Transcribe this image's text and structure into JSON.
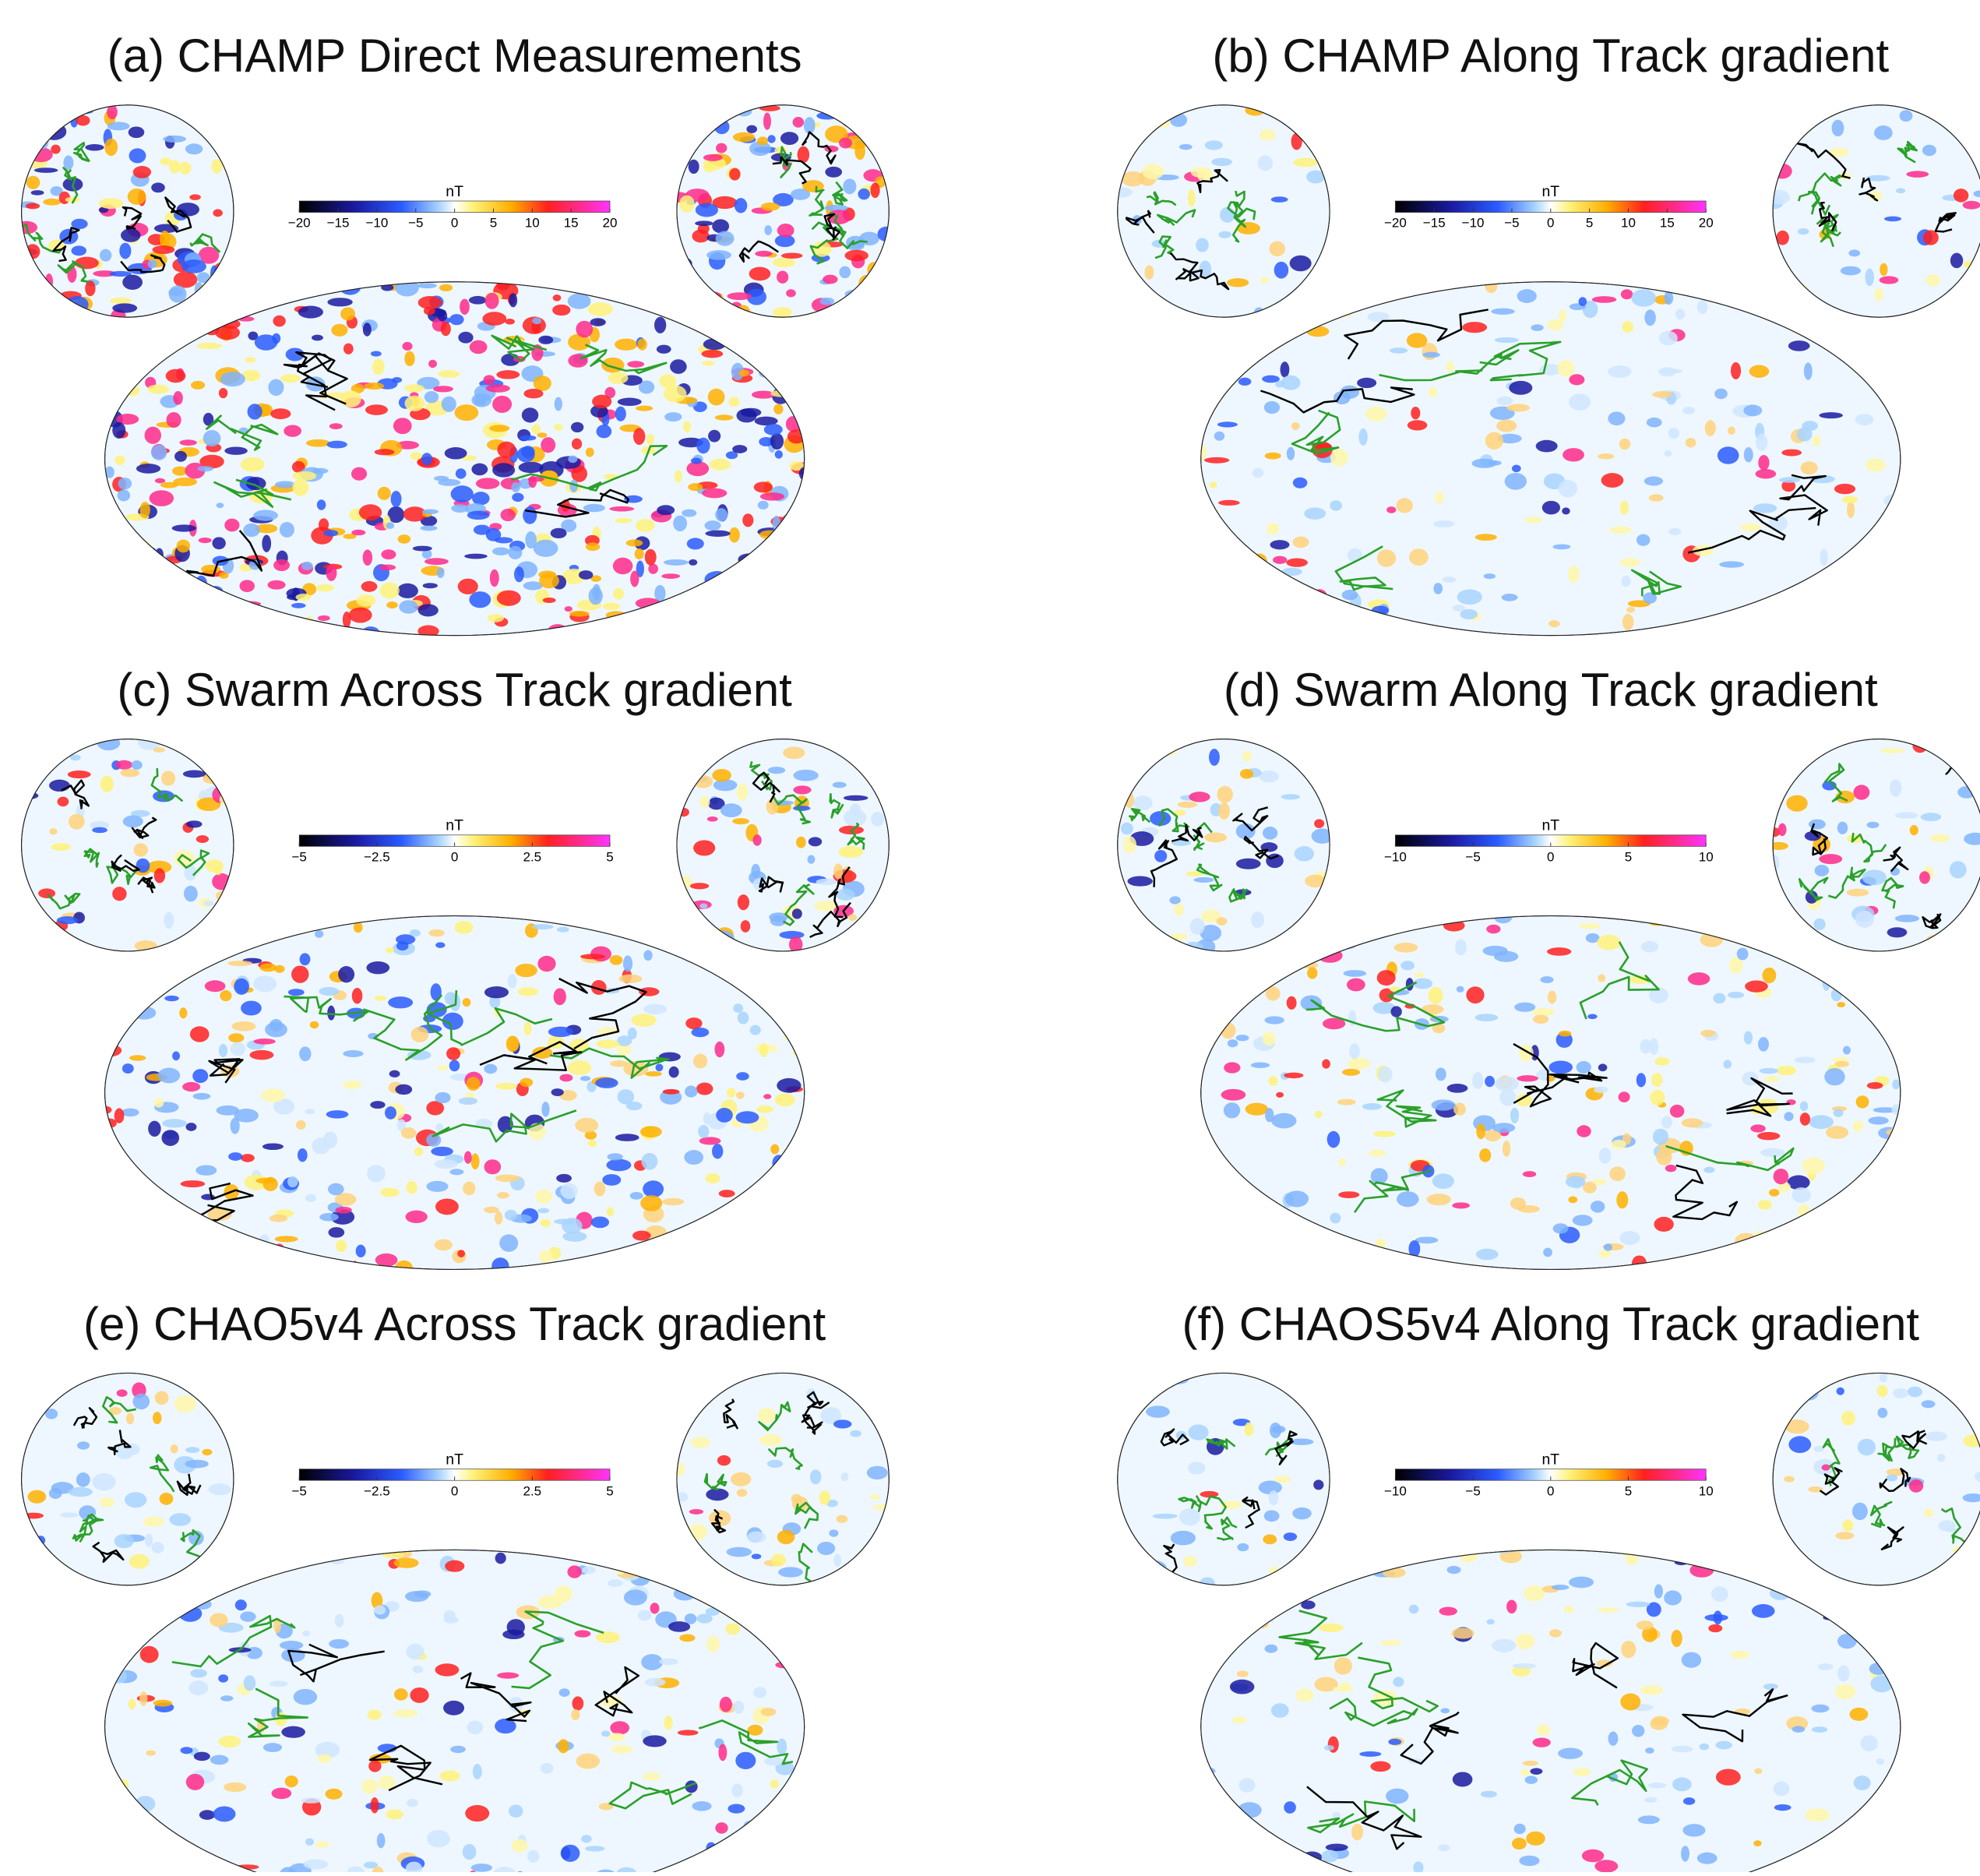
{
  "panels": [
    {
      "title": "(a) CHAMP Direct Measurements",
      "colorbar": {
        "unit": "nT",
        "ticks": [
          {
            "value": -20,
            "label": "−20"
          },
          {
            "value": -15,
            "label": "−15"
          },
          {
            "value": -10,
            "label": "−10"
          },
          {
            "value": -5,
            "label": "−5"
          },
          0,
          5,
          10,
          15,
          20
        ]
      }
    },
    {
      "title": "(b) CHAMP Along Track gradient",
      "colorbar": {
        "unit": "nT",
        "ticks": [
          {
            "value": -20,
            "label": "−20"
          },
          {
            "value": -15,
            "label": "−15"
          },
          {
            "value": -10,
            "label": "−10"
          },
          {
            "value": -5,
            "label": "−5"
          },
          0,
          5,
          10,
          15,
          20
        ]
      }
    },
    {
      "title": "(c) Swarm Across Track gradient",
      "colorbar": {
        "unit": "nT",
        "ticks": [
          {
            "value": -5,
            "label": "−5"
          },
          {
            "value": -2.5,
            "label": "−2.5"
          },
          0,
          2.5,
          5
        ]
      }
    },
    {
      "title": "(d) Swarm Along Track gradient",
      "colorbar": {
        "unit": "nT",
        "ticks": [
          {
            "value": -10,
            "label": "−10"
          },
          {
            "value": -5,
            "label": "−5"
          },
          0,
          5,
          10
        ]
      }
    },
    {
      "title": "(e) CHAO5v4 Across Track gradient",
      "colorbar": {
        "unit": "nT",
        "ticks": [
          {
            "value": -5,
            "label": "−5"
          },
          {
            "value": -2.5,
            "label": "−2.5"
          },
          0,
          2.5,
          5
        ]
      }
    },
    {
      "title": "(f) CHAOS5v4 Along Track gradient",
      "colorbar": {
        "unit": "nT",
        "ticks": [
          {
            "value": -10,
            "label": "−10"
          },
          {
            "value": -5,
            "label": "−5"
          },
          0,
          5,
          10
        ]
      }
    }
  ]
}
